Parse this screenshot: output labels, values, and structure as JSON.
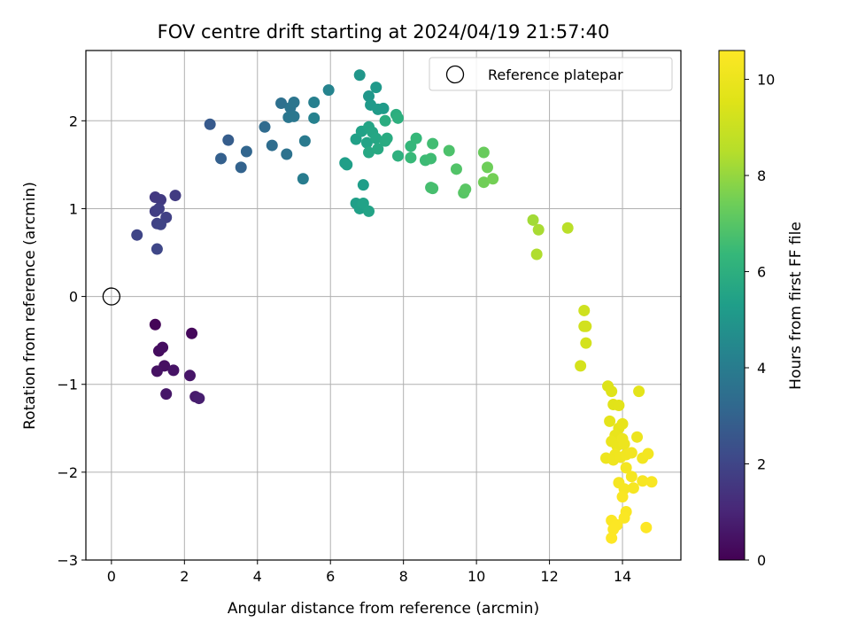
{
  "chart_data": {
    "type": "scatter",
    "title": "FOV centre drift starting at 2024/04/19 21:57:40",
    "xlabel": "Angular distance from reference (arcmin)",
    "ylabel": "Rotation from reference (arcmin)",
    "xlim": [
      -0.7,
      15.6
    ],
    "ylim": [
      -3.0,
      2.8
    ],
    "xticks": [
      0,
      2,
      4,
      6,
      8,
      10,
      12,
      14
    ],
    "xtick_labels": [
      "0",
      "2",
      "4",
      "6",
      "8",
      "10",
      "12",
      "14"
    ],
    "yticks": [
      -3,
      -2,
      -1,
      0,
      1,
      2
    ],
    "ytick_labels": [
      "−3",
      "−2",
      "−1",
      "0",
      "1",
      "2"
    ],
    "grid": true,
    "legend_position": "upper right",
    "reference": {
      "name": "Reference platepar",
      "x": 0,
      "y": 0,
      "marker": "open-circle"
    },
    "colorbar": {
      "label": "Hours from first FF file",
      "colormap": "viridis",
      "range": [
        0,
        10.6
      ],
      "ticks": [
        0,
        2,
        4,
        6,
        8,
        10
      ],
      "tick_labels": [
        "0",
        "2",
        "4",
        "6",
        "8",
        "10"
      ]
    },
    "series": [
      {
        "values": [
          [
            1.2,
            -0.32,
            0.1
          ],
          [
            2.2,
            -0.42,
            0.2
          ],
          [
            1.3,
            -0.62,
            0.3
          ],
          [
            1.4,
            -0.58,
            0.35
          ],
          [
            1.45,
            -0.79,
            0.4
          ],
          [
            1.25,
            -0.85,
            0.45
          ],
          [
            1.7,
            -0.84,
            0.5
          ],
          [
            2.15,
            -0.9,
            0.55
          ],
          [
            1.5,
            -1.11,
            0.6
          ],
          [
            2.3,
            -1.14,
            0.7
          ],
          [
            2.4,
            -1.16,
            0.8
          ],
          [
            1.2,
            1.13,
            1.6
          ],
          [
            1.35,
            1.1,
            1.65
          ],
          [
            1.75,
            1.15,
            1.7
          ],
          [
            1.2,
            0.97,
            1.75
          ],
          [
            1.3,
            1.0,
            1.8
          ],
          [
            1.5,
            0.9,
            1.85
          ],
          [
            1.25,
            0.83,
            1.9
          ],
          [
            1.35,
            0.82,
            1.95
          ],
          [
            0.7,
            0.7,
            2.0
          ],
          [
            1.25,
            0.54,
            2.05
          ],
          [
            2.7,
            1.96,
            2.7
          ],
          [
            3.2,
            1.78,
            2.8
          ],
          [
            3.0,
            1.57,
            2.9
          ],
          [
            3.55,
            1.47,
            3.0
          ],
          [
            3.7,
            1.65,
            3.1
          ],
          [
            4.2,
            1.93,
            3.3
          ],
          [
            4.4,
            1.72,
            3.4
          ],
          [
            4.65,
            2.2,
            3.5
          ],
          [
            4.8,
            1.62,
            3.6
          ],
          [
            4.9,
            2.15,
            3.65
          ],
          [
            5.0,
            2.21,
            3.7
          ],
          [
            4.85,
            2.04,
            3.75
          ],
          [
            5.0,
            2.05,
            3.8
          ],
          [
            5.3,
            1.77,
            3.9
          ],
          [
            5.25,
            1.34,
            4.0
          ],
          [
            5.55,
            2.21,
            4.1
          ],
          [
            5.55,
            2.03,
            4.2
          ],
          [
            5.95,
            2.35,
            4.3
          ],
          [
            6.8,
            2.52,
            5.0
          ],
          [
            7.05,
            2.28,
            5.05
          ],
          [
            7.25,
            2.38,
            5.1
          ],
          [
            7.1,
            2.18,
            5.15
          ],
          [
            7.3,
            2.13,
            5.2
          ],
          [
            7.45,
            2.14,
            5.2
          ],
          [
            6.4,
            1.52,
            5.3
          ],
          [
            6.45,
            1.5,
            5.35
          ],
          [
            6.7,
            1.79,
            5.4
          ],
          [
            6.85,
            1.88,
            5.45
          ],
          [
            7.0,
            1.75,
            5.5
          ],
          [
            7.05,
            1.93,
            5.55
          ],
          [
            7.15,
            1.87,
            5.6
          ],
          [
            7.25,
            1.8,
            5.65
          ],
          [
            7.05,
            1.64,
            5.7
          ],
          [
            7.3,
            1.68,
            5.75
          ],
          [
            7.5,
            1.77,
            5.8
          ],
          [
            7.55,
            1.8,
            5.85
          ],
          [
            7.5,
            2.0,
            5.9
          ],
          [
            7.8,
            2.07,
            5.95
          ],
          [
            7.85,
            2.03,
            6.0
          ],
          [
            7.85,
            1.6,
            6.05
          ],
          [
            6.9,
            1.27,
            5.3
          ],
          [
            6.7,
            1.06,
            5.35
          ],
          [
            6.8,
            1.0,
            5.4
          ],
          [
            6.9,
            1.06,
            5.45
          ],
          [
            7.05,
            0.97,
            5.5
          ],
          [
            8.2,
            1.71,
            6.3
          ],
          [
            8.35,
            1.8,
            6.35
          ],
          [
            8.2,
            1.58,
            6.4
          ],
          [
            8.6,
            1.55,
            6.5
          ],
          [
            8.75,
            1.57,
            6.55
          ],
          [
            8.8,
            1.74,
            6.6
          ],
          [
            8.75,
            1.24,
            6.65
          ],
          [
            8.8,
            1.23,
            6.7
          ],
          [
            9.25,
            1.66,
            6.8
          ],
          [
            9.45,
            1.45,
            6.9
          ],
          [
            9.65,
            1.18,
            7.0
          ],
          [
            9.7,
            1.22,
            7.05
          ],
          [
            10.2,
            1.64,
            7.3
          ],
          [
            10.3,
            1.47,
            7.4
          ],
          [
            10.2,
            1.3,
            7.45
          ],
          [
            10.45,
            1.34,
            7.5
          ],
          [
            11.55,
            0.87,
            8.2
          ],
          [
            11.7,
            0.76,
            8.3
          ],
          [
            11.65,
            0.48,
            8.4
          ],
          [
            12.5,
            0.78,
            8.6
          ],
          [
            12.95,
            -0.16,
            9.1
          ],
          [
            12.95,
            -0.34,
            9.15
          ],
          [
            13.0,
            -0.34,
            9.2
          ],
          [
            13.0,
            -0.53,
            9.25
          ],
          [
            12.85,
            -0.79,
            9.3
          ],
          [
            13.6,
            -1.02,
            9.5
          ],
          [
            13.7,
            -1.08,
            9.55
          ],
          [
            13.75,
            -1.23,
            9.6
          ],
          [
            13.9,
            -1.24,
            9.65
          ],
          [
            14.45,
            -1.08,
            9.7
          ],
          [
            13.65,
            -1.42,
            9.75
          ],
          [
            13.9,
            -1.5,
            9.8
          ],
          [
            14.0,
            -1.45,
            9.85
          ],
          [
            13.8,
            -1.58,
            9.9
          ],
          [
            13.7,
            -1.65,
            9.95
          ],
          [
            13.85,
            -1.7,
            9.97
          ],
          [
            14.0,
            -1.62,
            10.0
          ],
          [
            14.05,
            -1.68,
            10.02
          ],
          [
            14.4,
            -1.6,
            10.05
          ],
          [
            13.55,
            -1.84,
            10.08
          ],
          [
            13.8,
            -1.8,
            10.1
          ],
          [
            13.75,
            -1.86,
            10.12
          ],
          [
            13.95,
            -1.83,
            10.15
          ],
          [
            14.1,
            -1.8,
            10.17
          ],
          [
            14.25,
            -1.78,
            10.2
          ],
          [
            14.55,
            -1.84,
            10.22
          ],
          [
            14.7,
            -1.79,
            10.25
          ],
          [
            14.1,
            -1.95,
            10.28
          ],
          [
            14.25,
            -2.05,
            10.3
          ],
          [
            13.9,
            -2.12,
            10.32
          ],
          [
            14.05,
            -2.19,
            10.35
          ],
          [
            14.3,
            -2.18,
            10.37
          ],
          [
            14.55,
            -2.1,
            10.4
          ],
          [
            14.8,
            -2.11,
            10.42
          ],
          [
            14.0,
            -2.28,
            10.45
          ],
          [
            14.1,
            -2.45,
            10.47
          ],
          [
            14.05,
            -2.52,
            10.5
          ],
          [
            13.7,
            -2.55,
            10.52
          ],
          [
            13.85,
            -2.6,
            10.55
          ],
          [
            13.75,
            -2.65,
            10.57
          ],
          [
            13.7,
            -2.75,
            10.6
          ],
          [
            14.65,
            -2.63,
            10.6
          ]
        ]
      }
    ]
  }
}
